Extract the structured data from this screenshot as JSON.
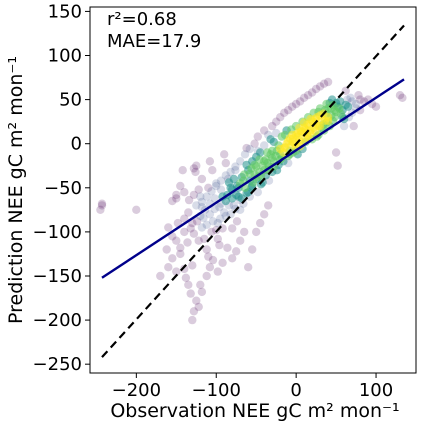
{
  "chart_data": {
    "type": "scatter",
    "title": "",
    "xlabel": "Observation NEE gC m² mon⁻¹",
    "ylabel": "Prediction NEE gC m² mon⁻¹",
    "xlim": [
      -258,
      150
    ],
    "ylim": [
      -260,
      155
    ],
    "xticks": [
      -200,
      -100,
      0,
      100
    ],
    "xtick_labels": [
      "−200",
      "−100",
      "0",
      "100"
    ],
    "yticks": [
      -250,
      -200,
      -150,
      -100,
      -50,
      0,
      50,
      100,
      150
    ],
    "ytick_labels": [
      "−250",
      "−200",
      "−150",
      "−100",
      "−50",
      "0",
      "50",
      "100",
      "150"
    ],
    "grid": false,
    "stats": {
      "r2": "r²=0.68",
      "mae": "MAE=17.9"
    },
    "fit_line": {
      "x": [
        -243,
        135
      ],
      "y": [
        -152,
        73
      ],
      "color": "#00008b"
    },
    "identity_line": {
      "x": [
        -243,
        135
      ],
      "y": [
        -242,
        134
      ],
      "color": "#000000",
      "style": "dashed"
    },
    "point_colormap": [
      "#440154",
      "#3b528b",
      "#21918c",
      "#5ec962",
      "#fde725"
    ],
    "point_alpha": 0.2,
    "points": [
      [
        -243,
        -70
      ],
      [
        -245,
        -75
      ],
      [
        -243,
        -68
      ],
      [
        -150,
        -62
      ],
      [
        -148,
        -90
      ],
      [
        -150,
        -110
      ],
      [
        -145,
        -125
      ],
      [
        -140,
        -142
      ],
      [
        -138,
        -152
      ],
      [
        -135,
        -160
      ],
      [
        -132,
        -170
      ],
      [
        -130,
        -138
      ],
      [
        -128,
        -28
      ],
      [
        -126,
        -32
      ],
      [
        -125,
        -25
      ],
      [
        -118,
        -40
      ],
      [
        -115,
        -108
      ],
      [
        -112,
        -120
      ],
      [
        -110,
        -128
      ],
      [
        -108,
        -20
      ],
      [
        -105,
        -30
      ],
      [
        -100,
        -98
      ],
      [
        -98,
        -108
      ],
      [
        -96,
        -115
      ],
      [
        -92,
        -60
      ],
      [
        -90,
        -12
      ],
      [
        -88,
        -22
      ],
      [
        -85,
        -40
      ],
      [
        -82,
        -80
      ],
      [
        -80,
        -96
      ],
      [
        -78,
        -70
      ],
      [
        -75,
        -58
      ],
      [
        -72,
        -50
      ],
      [
        -70,
        -45
      ],
      [
        -68,
        -62
      ],
      [
        -65,
        -35
      ],
      [
        -62,
        -5
      ],
      [
        -60,
        -30
      ],
      [
        -58,
        -42
      ],
      [
        -55,
        -20
      ],
      [
        -52,
        -35
      ],
      [
        -50,
        -15
      ],
      [
        -48,
        -55
      ],
      [
        -45,
        -10
      ],
      [
        -42,
        -25
      ],
      [
        -40,
        -2
      ],
      [
        -38,
        -18
      ],
      [
        -35,
        -30
      ],
      [
        -32,
        5
      ],
      [
        -30,
        -8
      ],
      [
        -28,
        -20
      ],
      [
        -25,
        12
      ],
      [
        -22,
        -2
      ],
      [
        -20,
        -12
      ],
      [
        -18,
        8
      ],
      [
        -15,
        -5
      ],
      [
        -12,
        15
      ],
      [
        -10,
        3
      ],
      [
        -8,
        -8
      ],
      [
        -5,
        10
      ],
      [
        -2,
        0
      ],
      [
        0,
        20
      ],
      [
        2,
        8
      ],
      [
        5,
        -3
      ],
      [
        8,
        25
      ],
      [
        10,
        12
      ],
      [
        12,
        2
      ],
      [
        15,
        30
      ],
      [
        18,
        15
      ],
      [
        20,
        5
      ],
      [
        22,
        35
      ],
      [
        25,
        22
      ],
      [
        28,
        10
      ],
      [
        30,
        40
      ],
      [
        32,
        28
      ],
      [
        35,
        15
      ],
      [
        38,
        45
      ],
      [
        40,
        30
      ],
      [
        42,
        20
      ],
      [
        45,
        50
      ],
      [
        48,
        38
      ],
      [
        50,
        -10
      ],
      [
        52,
        -25
      ],
      [
        55,
        48
      ],
      [
        58,
        30
      ],
      [
        60,
        20
      ],
      [
        62,
        60
      ],
      [
        65,
        42
      ],
      [
        68,
        52
      ],
      [
        70,
        35
      ],
      [
        72,
        20
      ],
      [
        75,
        45
      ],
      [
        78,
        55
      ],
      [
        80,
        38
      ],
      [
        85,
        48
      ],
      [
        90,
        50
      ],
      [
        95,
        45
      ],
      [
        100,
        42
      ],
      [
        130,
        55
      ],
      [
        133,
        52
      ],
      [
        -160,
        -95
      ],
      [
        -155,
        -105
      ],
      [
        -162,
        -120
      ],
      [
        -120,
        -60
      ],
      [
        -110,
        -50
      ],
      [
        -100,
        -45
      ],
      [
        -95,
        -85
      ],
      [
        -88,
        -65
      ],
      [
        -82,
        -50
      ],
      [
        -78,
        -40
      ],
      [
        -74,
        -88
      ],
      [
        -70,
        -75
      ],
      [
        -66,
        -68
      ],
      [
        -60,
        -55
      ],
      [
        -55,
        -48
      ],
      [
        -50,
        -40
      ],
      [
        -46,
        -32
      ],
      [
        -42,
        -44
      ],
      [
        -38,
        -36
      ],
      [
        -34,
        -26
      ],
      [
        -30,
        -32
      ],
      [
        -26,
        -14
      ],
      [
        -22,
        -24
      ],
      [
        -18,
        -16
      ],
      [
        -14,
        -4
      ],
      [
        -10,
        -14
      ],
      [
        -6,
        -2
      ],
      [
        -4,
        6
      ],
      [
        0,
        -4
      ],
      [
        4,
        4
      ],
      [
        6,
        14
      ],
      [
        10,
        18
      ],
      [
        14,
        10
      ],
      [
        16,
        20
      ],
      [
        20,
        26
      ],
      [
        24,
        14
      ],
      [
        26,
        30
      ],
      [
        30,
        20
      ],
      [
        34,
        34
      ],
      [
        36,
        26
      ],
      [
        40,
        40
      ],
      [
        44,
        32
      ],
      [
        46,
        44
      ],
      [
        50,
        36
      ],
      [
        54,
        40
      ],
      [
        -140,
        -85
      ],
      [
        -135,
        -78
      ],
      [
        -130,
        -90
      ],
      [
        -125,
        -70
      ],
      [
        -120,
        -82
      ],
      [
        -118,
        -95
      ],
      [
        -114,
        -75
      ],
      [
        -108,
        -68
      ],
      [
        -104,
        -88
      ],
      [
        -102,
        -62
      ],
      [
        -96,
        -72
      ],
      [
        -94,
        -52
      ],
      [
        -90,
        -78
      ],
      [
        -86,
        -58
      ],
      [
        -84,
        -44
      ],
      [
        -80,
        -62
      ],
      [
        -76,
        -30
      ],
      [
        -72,
        -60
      ],
      [
        -68,
        -38
      ],
      [
        -64,
        -50
      ],
      [
        -62,
        -24
      ],
      [
        -58,
        -60
      ],
      [
        -56,
        -28
      ],
      [
        -54,
        -44
      ],
      [
        -50,
        -26
      ],
      [
        -48,
        -8
      ],
      [
        -44,
        -46
      ],
      [
        -40,
        -20
      ],
      [
        -36,
        -10
      ],
      [
        -34,
        -42
      ],
      [
        -30,
        -16
      ],
      [
        -28,
        2
      ],
      [
        -24,
        -30
      ],
      [
        -20,
        -6
      ],
      [
        -16,
        -20
      ],
      [
        -14,
        10
      ],
      [
        -10,
        -22
      ],
      [
        -8,
        6
      ],
      [
        -6,
        16
      ],
      [
        -4,
        -10
      ],
      [
        0,
        10
      ],
      [
        2,
        -12
      ],
      [
        4,
        18
      ],
      [
        8,
        -6
      ],
      [
        10,
        24
      ],
      [
        12,
        16
      ],
      [
        16,
        6
      ],
      [
        18,
        28
      ],
      [
        22,
        18
      ],
      [
        26,
        8
      ],
      [
        28,
        36
      ],
      [
        32,
        18
      ],
      [
        36,
        38
      ],
      [
        38,
        24
      ],
      [
        42,
        46
      ],
      [
        46,
        26
      ],
      [
        50,
        46
      ],
      [
        56,
        34
      ],
      [
        60,
        28
      ],
      [
        64,
        50
      ],
      [
        -170,
        -150
      ],
      [
        -160,
        -140
      ],
      [
        -155,
        -130
      ],
      [
        -150,
        -145
      ],
      [
        -145,
        -118
      ],
      [
        -140,
        -100
      ],
      [
        -136,
        -112
      ],
      [
        -132,
        -96
      ],
      [
        -128,
        -102
      ],
      [
        -124,
        -88
      ],
      [
        -122,
        -110
      ],
      [
        -118,
        -72
      ],
      [
        -116,
        -84
      ],
      [
        -112,
        -92
      ],
      [
        -108,
        -80
      ],
      [
        -106,
        -100
      ],
      [
        -102,
        -74
      ],
      [
        -98,
        -90
      ],
      [
        -94,
        -68
      ],
      [
        -92,
        -96
      ],
      [
        -88,
        -82
      ],
      [
        -84,
        -70
      ],
      [
        -80,
        -52
      ],
      [
        -76,
        -74
      ],
      [
        -74,
        -48
      ],
      [
        -70,
        -64
      ],
      [
        -66,
        -42
      ],
      [
        -62,
        -56
      ],
      [
        -58,
        -34
      ],
      [
        -56,
        -50
      ],
      [
        -52,
        -24
      ],
      [
        -48,
        -38
      ],
      [
        -46,
        -18
      ],
      [
        -44,
        -36
      ],
      [
        -40,
        -30
      ],
      [
        -36,
        -22
      ],
      [
        -32,
        -12
      ],
      [
        -28,
        -26
      ],
      [
        -24,
        -8
      ],
      [
        -20,
        -18
      ],
      [
        -16,
        -10
      ],
      [
        -12,
        0
      ],
      [
        -8,
        -12
      ],
      [
        -4,
        2
      ],
      [
        0,
        -8
      ],
      [
        2,
        12
      ],
      [
        6,
        2
      ],
      [
        8,
        14
      ],
      [
        12,
        6
      ],
      [
        14,
        22
      ],
      [
        18,
        12
      ],
      [
        22,
        24
      ],
      [
        24,
        28
      ],
      [
        28,
        20
      ],
      [
        30,
        32
      ],
      [
        34,
        22
      ],
      [
        38,
        34
      ],
      [
        40,
        26
      ],
      [
        44,
        40
      ],
      [
        48,
        30
      ],
      [
        52,
        42
      ],
      [
        58,
        38
      ],
      [
        62,
        44
      ],
      [
        66,
        30
      ],
      [
        70,
        48
      ],
      [
        75,
        40
      ],
      [
        80,
        50
      ],
      [
        -200,
        -75
      ],
      [
        -155,
        -65
      ],
      [
        -150,
        -58
      ],
      [
        -145,
        -48
      ],
      [
        -142,
        -30
      ],
      [
        -140,
        -55
      ],
      [
        -60,
        -140
      ],
      [
        -55,
        -120
      ],
      [
        -50,
        -100
      ],
      [
        -45,
        -90
      ],
      [
        -40,
        -80
      ],
      [
        -35,
        -70
      ],
      [
        -65,
        -100
      ],
      [
        -70,
        -110
      ],
      [
        -75,
        -122
      ],
      [
        -80,
        -130
      ],
      [
        -92,
        -135
      ],
      [
        -98,
        -145
      ],
      [
        -86,
        -118
      ],
      [
        -130,
        -200
      ],
      [
        -128,
        -190
      ],
      [
        -125,
        -178
      ],
      [
        -122,
        -185
      ],
      [
        -120,
        -160
      ],
      [
        -118,
        -168
      ],
      [
        -112,
        -150
      ],
      [
        -108,
        -140
      ],
      [
        -104,
        -132
      ],
      [
        -35,
        10
      ],
      [
        -30,
        20
      ],
      [
        -25,
        25
      ],
      [
        -20,
        30
      ],
      [
        -15,
        35
      ],
      [
        -10,
        38
      ],
      [
        -5,
        42
      ],
      [
        0,
        45
      ],
      [
        5,
        48
      ],
      [
        10,
        52
      ],
      [
        15,
        55
      ],
      [
        20,
        58
      ],
      [
        25,
        62
      ],
      [
        30,
        65
      ],
      [
        35,
        68
      ],
      [
        40,
        70
      ],
      [
        -40,
        15
      ],
      [
        -48,
        8
      ],
      [
        -52,
        0
      ],
      [
        -58,
        -6
      ],
      [
        -64,
        -12
      ],
      [
        -70,
        -20
      ],
      [
        -76,
        -26
      ],
      [
        -82,
        -32
      ],
      [
        -88,
        -36
      ],
      [
        -94,
        -42
      ],
      [
        -100,
        -48
      ],
      [
        -106,
        -54
      ],
      [
        -112,
        -60
      ],
      [
        -118,
        -66
      ],
      [
        -122,
        -52
      ],
      [
        -128,
        -58
      ],
      [
        -134,
        -64
      ]
    ]
  }
}
